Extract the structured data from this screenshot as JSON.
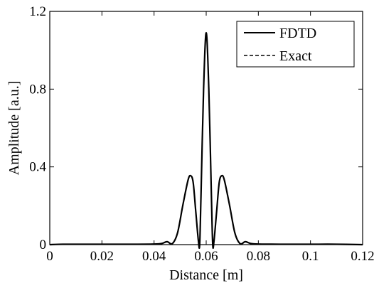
{
  "chart_data": {
    "type": "line",
    "title": "",
    "xlabel": "Distance [m]",
    "ylabel": "Amplitude [a.u.]",
    "xlim": [
      0,
      0.12
    ],
    "ylim": [
      0,
      1.2
    ],
    "xticks": [
      0,
      0.02,
      0.04,
      0.06,
      0.08,
      0.1,
      0.12
    ],
    "xtick_labels": [
      "0",
      "0.02",
      "0.04",
      "0.06",
      "0.08",
      "0.1",
      "0.12"
    ],
    "yticks": [
      0,
      0.4,
      0.8,
      1.2
    ],
    "ytick_labels": [
      "0",
      "0.4",
      "0.8",
      "1.2"
    ],
    "grid": false,
    "legend_position": "top-right",
    "line_color": "#000000",
    "series": [
      {
        "name": "FDTD",
        "style": "solid",
        "x": [
          0,
          0.005,
          0.01,
          0.02,
          0.03,
          0.04,
          0.043,
          0.045,
          0.047,
          0.049,
          0.051,
          0.053,
          0.054,
          0.055,
          0.056,
          0.057,
          0.0575,
          0.058,
          0.059,
          0.06,
          0.061,
          0.062,
          0.0625,
          0.063,
          0.064,
          0.065,
          0.066,
          0.067,
          0.069,
          0.071,
          0.073,
          0.075,
          0.077,
          0.08,
          0.09,
          0.1,
          0.11,
          0.12
        ],
        "values": [
          0.0,
          0.002,
          0.002,
          0.002,
          0.002,
          0.003,
          0.006,
          0.015,
          0.005,
          0.06,
          0.2,
          0.33,
          0.355,
          0.32,
          0.17,
          0.02,
          0.0,
          0.25,
          0.8,
          1.09,
          0.8,
          0.25,
          0.0,
          0.02,
          0.17,
          0.32,
          0.355,
          0.33,
          0.2,
          0.06,
          0.005,
          0.015,
          0.006,
          0.003,
          0.002,
          0.002,
          0.002,
          0.0
        ]
      },
      {
        "name": "Exact",
        "style": "dashed",
        "x": [
          0,
          0.005,
          0.01,
          0.02,
          0.03,
          0.04,
          0.043,
          0.045,
          0.047,
          0.049,
          0.051,
          0.053,
          0.054,
          0.055,
          0.056,
          0.057,
          0.0575,
          0.058,
          0.059,
          0.06,
          0.061,
          0.062,
          0.0625,
          0.063,
          0.064,
          0.065,
          0.066,
          0.067,
          0.069,
          0.071,
          0.073,
          0.075,
          0.077,
          0.08,
          0.09,
          0.1,
          0.11,
          0.12
        ],
        "values": [
          0.0,
          0.002,
          0.002,
          0.002,
          0.002,
          0.003,
          0.006,
          0.015,
          0.005,
          0.06,
          0.2,
          0.33,
          0.355,
          0.32,
          0.17,
          0.02,
          0.0,
          0.25,
          0.8,
          1.09,
          0.8,
          0.25,
          0.0,
          0.02,
          0.17,
          0.32,
          0.355,
          0.33,
          0.2,
          0.06,
          0.005,
          0.015,
          0.006,
          0.003,
          0.002,
          0.002,
          0.002,
          0.0
        ]
      }
    ]
  }
}
